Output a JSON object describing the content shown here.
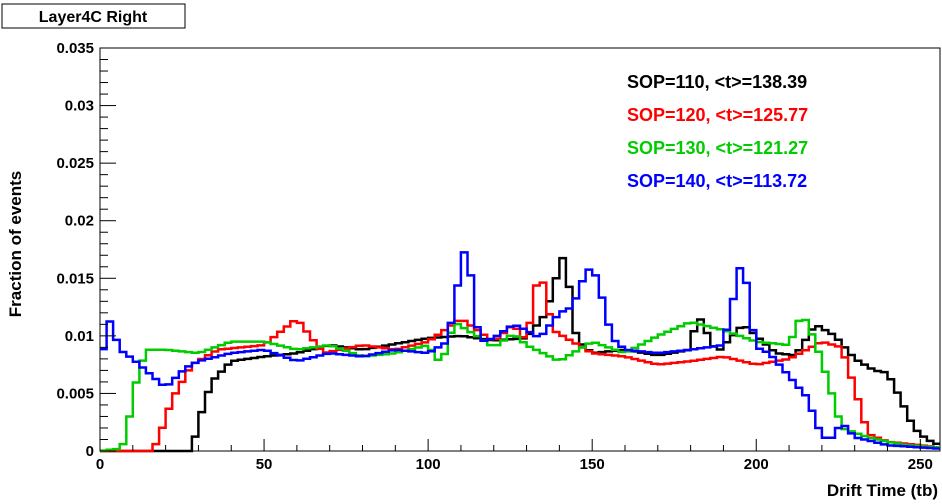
{
  "chart_data": {
    "type": "line",
    "title": "Layer4C Right",
    "xlabel": "Drift Time (tb)",
    "ylabel": "Fraction of events",
    "xlim": [
      0,
      256
    ],
    "ylim": [
      0,
      0.035
    ],
    "xticks": [
      0,
      50,
      100,
      150,
      200,
      250
    ],
    "xtick_labels": [
      "0",
      "50",
      "100",
      "150",
      "200",
      "250"
    ],
    "yticks": [
      0,
      0.005,
      0.01,
      0.015,
      0.02,
      0.025,
      0.03,
      0.035
    ],
    "ytick_labels": [
      "0",
      "0.005",
      "0.01",
      "0.015",
      "0.02",
      "0.025",
      "0.03",
      "0.035"
    ],
    "grid": false,
    "legend_position": "top-right",
    "bin_width": 2,
    "series": [
      {
        "name": "SOP=110, <t>=138.39",
        "color": "#000000",
        "x": [
          0,
          28,
          30,
          34,
          40,
          50,
          60,
          70,
          80,
          90,
          100,
          110,
          120,
          130,
          136,
          140,
          142,
          144,
          146,
          150,
          160,
          170,
          180,
          182,
          188,
          196,
          206,
          212,
          218,
          224,
          230,
          236,
          240,
          244,
          248,
          252,
          256
        ],
        "values": [
          0,
          0,
          0.0025,
          0.006,
          0.0078,
          0.0082,
          0.0085,
          0.0092,
          0.0088,
          0.0093,
          0.0098,
          0.01,
          0.0096,
          0.0098,
          0.012,
          0.016,
          0.0175,
          0.011,
          0.0095,
          0.0085,
          0.0088,
          0.0083,
          0.0088,
          0.012,
          0.0085,
          0.011,
          0.0085,
          0.0083,
          0.011,
          0.01,
          0.008,
          0.007,
          0.0068,
          0.0045,
          0.002,
          0.001,
          0.0005
        ]
      },
      {
        "name": "SOP=120, <t>=125.77",
        "color": "#ff0000",
        "x": [
          0,
          16,
          18,
          22,
          28,
          36,
          50,
          60,
          68,
          80,
          90,
          100,
          110,
          120,
          126,
          130,
          134,
          138,
          144,
          150,
          160,
          170,
          180,
          190,
          200,
          210,
          220,
          226,
          230,
          234,
          240,
          250,
          256
        ],
        "values": [
          0,
          0,
          0.0012,
          0.0045,
          0.0075,
          0.0088,
          0.0092,
          0.0115,
          0.0085,
          0.0092,
          0.0088,
          0.0095,
          0.0115,
          0.0095,
          0.011,
          0.0095,
          0.016,
          0.0105,
          0.0095,
          0.0085,
          0.0082,
          0.0075,
          0.0078,
          0.0082,
          0.0075,
          0.008,
          0.0095,
          0.009,
          0.0055,
          0.0015,
          0.0008,
          0.0005,
          0.0003
        ]
      },
      {
        "name": "SOP=130, <t>=121.27",
        "color": "#00cc00",
        "x": [
          0,
          6,
          8,
          10,
          14,
          20,
          30,
          40,
          50,
          60,
          70,
          80,
          90,
          100,
          104,
          108,
          116,
          120,
          126,
          130,
          140,
          150,
          160,
          170,
          180,
          190,
          200,
          210,
          214,
          218,
          222,
          226,
          234,
          240,
          246,
          256
        ],
        "values": [
          0,
          0.0002,
          0.001,
          0.005,
          0.0088,
          0.0088,
          0.0085,
          0.0095,
          0.0095,
          0.0088,
          0.0092,
          0.0082,
          0.0085,
          0.0092,
          0.0075,
          0.0112,
          0.0098,
          0.009,
          0.0102,
          0.0092,
          0.0078,
          0.0095,
          0.0085,
          0.01,
          0.0112,
          0.0105,
          0.0095,
          0.0092,
          0.012,
          0.0095,
          0.006,
          0.002,
          0.0012,
          0.0008,
          0.0005,
          0.0003
        ]
      },
      {
        "name": "SOP=140, <t>=113.72",
        "color": "#0000ff",
        "x": [
          0,
          2,
          4,
          6,
          10,
          16,
          20,
          26,
          30,
          40,
          50,
          60,
          70,
          80,
          90,
          100,
          106,
          110,
          112,
          114,
          116,
          120,
          126,
          130,
          134,
          140,
          144,
          148,
          150,
          152,
          156,
          160,
          170,
          180,
          190,
          196,
          198,
          200,
          204,
          210,
          216,
          218,
          220,
          222,
          224,
          226,
          230,
          236,
          240,
          256
        ],
        "values": [
          0.0057,
          0.012,
          0.0105,
          0.0088,
          0.008,
          0.0065,
          0.0055,
          0.0072,
          0.0078,
          0.0085,
          0.0088,
          0.0078,
          0.0085,
          0.0082,
          0.0088,
          0.0085,
          0.0095,
          0.016,
          0.0185,
          0.012,
          0.0095,
          0.0098,
          0.011,
          0.0105,
          0.0098,
          0.012,
          0.0125,
          0.0155,
          0.016,
          0.0145,
          0.0098,
          0.0088,
          0.0085,
          0.0088,
          0.0092,
          0.0172,
          0.012,
          0.009,
          0.0085,
          0.0065,
          0.0045,
          0.0025,
          0.0015,
          0.0008,
          0.0015,
          0.0025,
          0.0012,
          0.0008,
          0.0005,
          0.0002
        ]
      }
    ]
  }
}
